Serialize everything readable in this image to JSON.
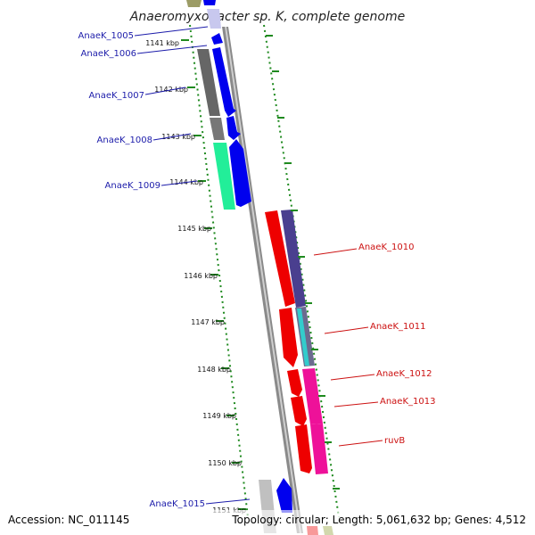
{
  "title": "Anaeromyxobacter sp. K, complete genome",
  "accession": "Accession: NC_011145",
  "summary": "Topology: circular; Length: 5,061,632 bp; Genes: 4,512",
  "colors": {
    "blue": "#0000ee",
    "red": "#ee0000",
    "gray": "#6f6f6f",
    "green": "#22ee99",
    "purple": "#4a3f8f",
    "teal": "#33cccc",
    "pink": "#ee1199",
    "light-gray": "#bbbbbb",
    "backbone": "#8a8a8a",
    "dotted-ring": "#1f8a1f"
  },
  "ticks": [
    "1141 kbp",
    "1142 kbp",
    "1143 kbp",
    "1144 kbp",
    "1145 kbp",
    "1146 kbp",
    "1147 kbp",
    "1148 kbp",
    "1149 kbp",
    "1150 kbp",
    "1151 kbp"
  ],
  "left_labels": [
    "AnaeK_1005",
    "AnaeK_1006",
    "AnaeK_1007",
    "AnaeK_1008",
    "AnaeK_1009",
    "AnaeK_1015"
  ],
  "right_labels": [
    "AnaeK_1010",
    "AnaeK_1011",
    "AnaeK_1012",
    "AnaeK_1013",
    "ruvB"
  ]
}
